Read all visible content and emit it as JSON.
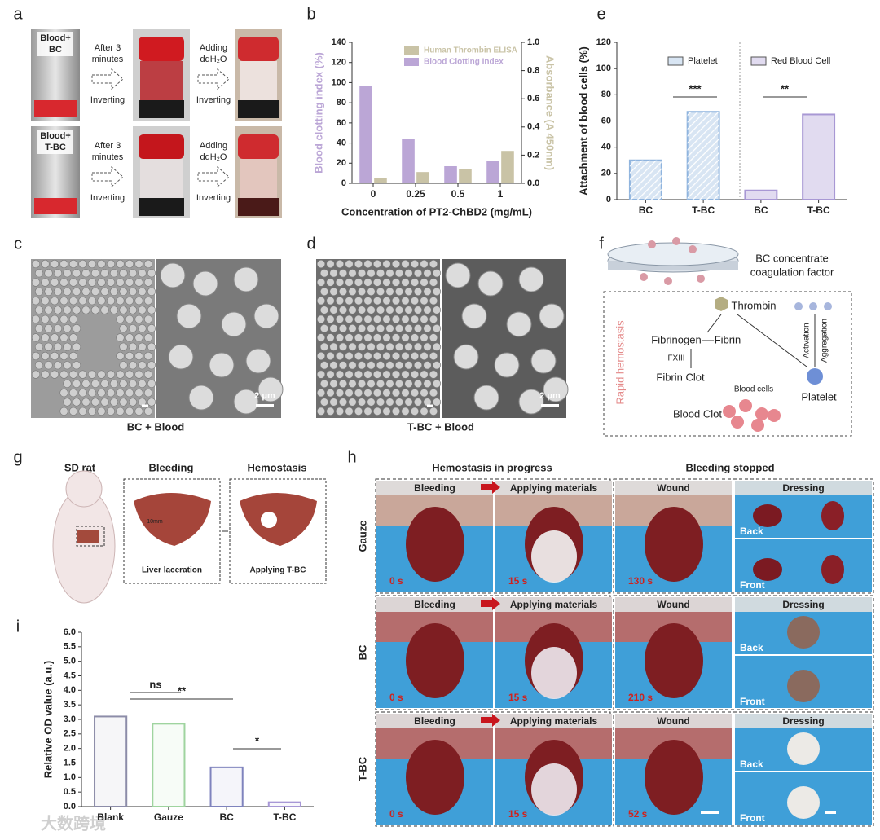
{
  "panel_labels": [
    "a",
    "b",
    "e",
    "c",
    "d",
    "f",
    "g",
    "h",
    "i"
  ],
  "panel_a": {
    "rows": [
      {
        "sample": [
          "Blood+",
          "BC"
        ],
        "step1": [
          "After 3",
          "minutes",
          "Inverting"
        ],
        "step2": [
          "Adding",
          "ddH₂O",
          "Inverting"
        ]
      },
      {
        "sample": [
          "Blood+",
          "T-BC"
        ],
        "step1": [
          "After 3",
          "minutes",
          "Inverting"
        ],
        "step2": [
          "Adding",
          "ddH₂O",
          "Inverting"
        ]
      }
    ]
  },
  "panel_c": {
    "scale": "2 μm",
    "caption": "BC + Blood"
  },
  "panel_d": {
    "scale": "2 μm",
    "caption": "T-BC + Blood"
  },
  "panel_f": {
    "disk": [
      "BC concentrate",
      "coagulation factor"
    ],
    "side": "Rapid hemostasis",
    "thrombin": "Thrombin",
    "fibrinogen": "Fibrinogen",
    "fibrin": "Fibrin",
    "fxiii": "FXIII",
    "fibrin_clot": "Fibrin Clot",
    "activation": "Activation",
    "aggregation": "Aggregation",
    "platelet": "Platelet",
    "blood_cells": "Blood cells",
    "blood_clot": "Blood Clot"
  },
  "panel_g": {
    "headers": [
      "SD rat",
      "Bleeding",
      "Hemostasis"
    ],
    "captions": [
      "Liver laceration",
      "Applying T-BC"
    ],
    "size": "10mm"
  },
  "panel_h": {
    "headers": [
      "Hemostasis in progress",
      "Bleeding stopped"
    ],
    "columns": [
      "Bleeding",
      "Applying materials",
      "Wound",
      "Dressing"
    ],
    "sides": [
      "Back",
      "Front"
    ],
    "rows": [
      {
        "name": "Gauze",
        "times": [
          "0 s",
          "15 s",
          "130 s"
        ]
      },
      {
        "name": "BC",
        "times": [
          "0 s",
          "15 s",
          "210 s"
        ]
      },
      {
        "name": "T-BC",
        "times": [
          "0 s",
          "15 s",
          "52 s"
        ]
      }
    ]
  },
  "watermark": "大数跨境",
  "chart_data": [
    {
      "type": "bar",
      "xlabel": "Concentration of PT2-ChBD2 (mg/mL)",
      "ylabel": "Blood clotting index (%)",
      "y2label": "Absorbance (A 450nm)",
      "categories": [
        "0",
        "0.25",
        "0.5",
        "1"
      ],
      "series": [
        {
          "name": "Human Thrombin ELISA",
          "color": "#c9c3a6",
          "axis": "y2",
          "values": [
            0.04,
            0.08,
            0.1,
            0.23
          ]
        },
        {
          "name": "Blood Clotting Index",
          "color": "#bba6d6",
          "axis": "y",
          "values": [
            97,
            44,
            17,
            22
          ]
        }
      ],
      "ylim": [
        0,
        140
      ],
      "yticks": [
        0,
        20,
        40,
        60,
        80,
        100,
        120,
        140
      ],
      "y2lim": [
        0,
        1
      ],
      "y2ticks": [
        {
          "value": 0,
          "label": "0.0"
        },
        0.2,
        0.4,
        0.6,
        0.8,
        {
          "value": 1,
          "label": "1.0"
        }
      ]
    },
    {
      "type": "bar",
      "ylabel": "Attachment of blood cells (%)",
      "categories": [
        "BC",
        "T-BC",
        "BC",
        "T-BC"
      ],
      "series": [
        {
          "name": "Platelet",
          "color": "#8fb4de",
          "values": [
            30,
            67,
            null,
            null
          ]
        },
        {
          "name": "Red Blood Cell",
          "color": "#a898d4",
          "values": [
            null,
            null,
            7,
            65
          ]
        }
      ],
      "ylim": [
        0,
        120
      ],
      "yticks": [
        0,
        20,
        40,
        60,
        80,
        100,
        120
      ],
      "annotations": [
        "***",
        "**"
      ]
    },
    {
      "type": "bar",
      "ylabel": "Relative OD value (a.u.)",
      "categories": [
        "Blank",
        "Gauze",
        "BC",
        "T-BC"
      ],
      "values": [
        3.1,
        2.85,
        1.35,
        0.15
      ],
      "colors": [
        "#8c8ca8",
        "#9fd49f",
        "#7f83bd",
        "#a797d6"
      ],
      "ylim": [
        0,
        6
      ],
      "yticks": [
        {
          "value": 0,
          "label": "0.0"
        },
        0.5,
        {
          "value": 1,
          "label": "1.0"
        },
        1.5,
        {
          "value": 2,
          "label": "2.0"
        },
        2.5,
        {
          "value": 3,
          "label": "3.0"
        },
        3.5,
        {
          "value": 4,
          "label": "4.0"
        },
        4.5,
        {
          "value": 5,
          "label": "5.0"
        },
        5.5,
        {
          "value": 6,
          "label": "6.0"
        }
      ],
      "annotations": [
        "ns",
        "**",
        "*"
      ]
    }
  ]
}
